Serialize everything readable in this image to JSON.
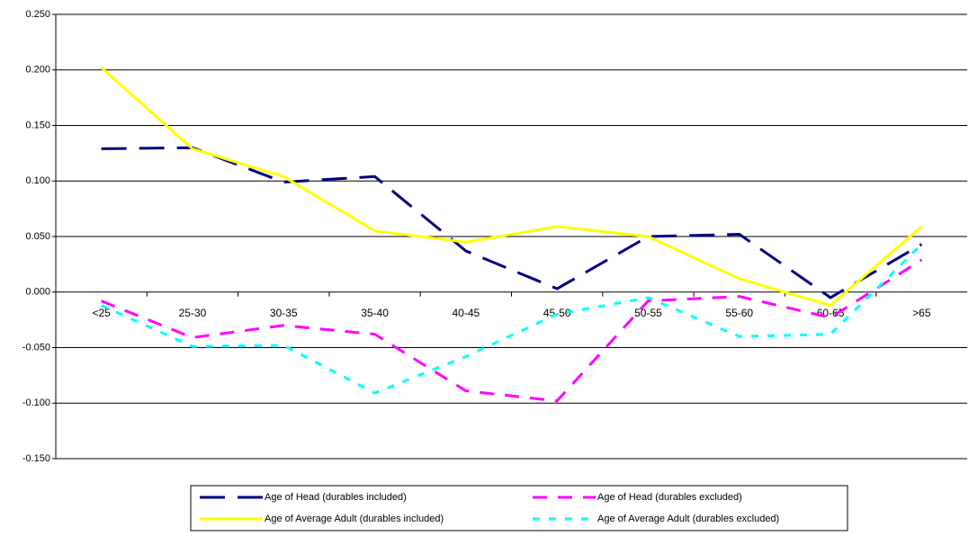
{
  "chart_data": {
    "type": "line",
    "categories": [
      "<25",
      "25-30",
      "30-35",
      "35-40",
      "40-45",
      "45-50",
      "50-55",
      "55-60",
      "60-65",
      ">65"
    ],
    "series": [
      {
        "name": "Age of Head (durables included)",
        "color": "#000080",
        "values": [
          0.129,
          0.13,
          0.099,
          0.104,
          0.037,
          0.003,
          0.05,
          0.052,
          -0.005,
          0.043
        ]
      },
      {
        "name": "Age of Head (durables excluded)",
        "color": "#ff00ff",
        "values": [
          -0.008,
          -0.041,
          -0.03,
          -0.038,
          -0.089,
          -0.098,
          -0.008,
          -0.004,
          -0.023,
          0.029
        ]
      },
      {
        "name": "Age of Average Adult (durables included)",
        "color": "#ffff00",
        "values": [
          0.202,
          0.129,
          0.104,
          0.055,
          0.045,
          0.059,
          0.05,
          0.012,
          -0.012,
          0.059
        ]
      },
      {
        "name": "Age of Average Adult (durables excluded)",
        "color": "#00ffff",
        "values": [
          -0.012,
          -0.049,
          -0.048,
          -0.091,
          -0.058,
          -0.02,
          -0.005,
          -0.04,
          -0.038,
          0.043
        ]
      }
    ],
    "ylim": [
      -0.15,
      0.25
    ],
    "yticks": [
      {
        "value": -0.15,
        "label": "-0.150"
      },
      {
        "value": -0.1,
        "label": "-0.100"
      },
      {
        "value": -0.05,
        "label": "-0.050"
      },
      {
        "value": 0,
        "label": "0.000"
      },
      {
        "value": 0.05,
        "label": "0.050"
      },
      {
        "value": 0.1,
        "label": "0.100"
      },
      {
        "value": 0.15,
        "label": "0.150"
      },
      {
        "value": 0.2,
        "label": "0.200"
      },
      {
        "value": 0.25,
        "label": "0.250"
      }
    ],
    "grid": true
  }
}
